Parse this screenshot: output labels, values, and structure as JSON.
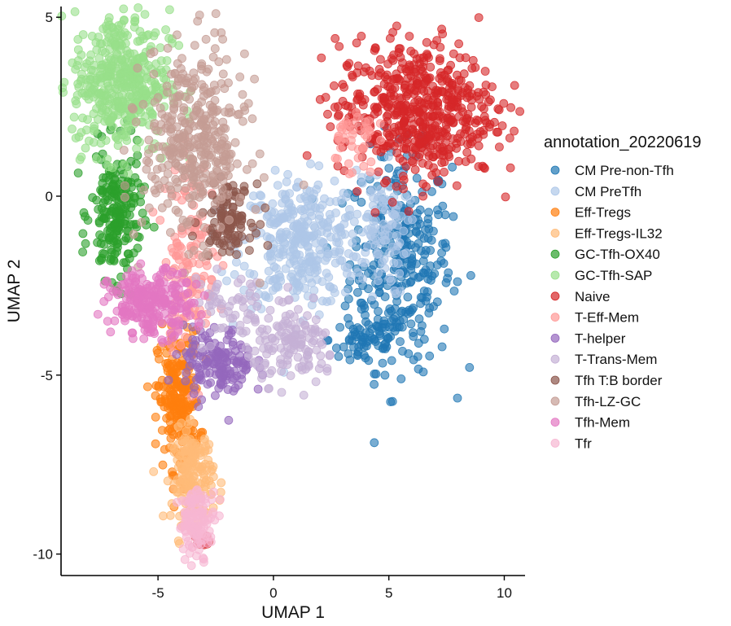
{
  "chart_data": {
    "type": "scatter",
    "title": "",
    "xlabel": "UMAP 1",
    "ylabel": "UMAP 2",
    "xlim": [
      -9.2,
      10.9
    ],
    "ylim": [
      -10.6,
      5.3
    ],
    "xticks": [
      -5,
      0,
      5,
      10
    ],
    "yticks": [
      -10,
      -5,
      0,
      5
    ],
    "xtick_labels": [
      "-5",
      "0",
      "5",
      "10"
    ],
    "ytick_labels": [
      "-10",
      "-5",
      "0",
      "5"
    ],
    "grid": false,
    "legend_position": "right",
    "legend_title": "annotation_20220619",
    "series": [
      {
        "name": "CM Pre-non-Tfh",
        "color": "#1f77b4",
        "clusters": [
          {
            "cx": 5.5,
            "cy": -1.8,
            "sx": 1.1,
            "sy": 1.5,
            "n": 330
          },
          {
            "cx": 4.0,
            "cy": -4.0,
            "sx": 0.8,
            "sy": 0.4,
            "n": 60
          }
        ]
      },
      {
        "name": "CM PreTfh",
        "color": "#aec7e8",
        "clusters": [
          {
            "cx": 1.2,
            "cy": -1.3,
            "sx": 1.3,
            "sy": 0.9,
            "n": 340
          },
          {
            "cx": 4.6,
            "cy": -1.0,
            "sx": 0.6,
            "sy": 0.9,
            "n": 90
          }
        ]
      },
      {
        "name": "Eff-Tregs",
        "color": "#ff7f0e",
        "clusters": [
          {
            "cx": -4.1,
            "cy": -5.7,
            "sx": 0.45,
            "sy": 0.95,
            "n": 230
          }
        ]
      },
      {
        "name": "Eff-Tregs-IL32",
        "color": "#ffbb78",
        "clusters": [
          {
            "cx": -3.5,
            "cy": -7.8,
            "sx": 0.45,
            "sy": 0.65,
            "n": 170
          }
        ]
      },
      {
        "name": "GC-Tfh-OX40",
        "color": "#2ca02c",
        "clusters": [
          {
            "cx": -6.8,
            "cy": -0.5,
            "sx": 0.55,
            "sy": 0.9,
            "n": 210
          }
        ]
      },
      {
        "name": "GC-Tfh-SAP",
        "color": "#98df8a",
        "clusters": [
          {
            "cx": -6.6,
            "cy": 3.2,
            "sx": 1.05,
            "sy": 1.0,
            "n": 440
          }
        ]
      },
      {
        "name": "Naive",
        "color": "#d62728",
        "clusters": [
          {
            "cx": 6.2,
            "cy": 2.4,
            "sx": 1.7,
            "sy": 0.95,
            "n": 560
          },
          {
            "cx": -3.1,
            "cy": -9.7,
            "sx": 0.2,
            "sy": 0.12,
            "n": 14
          }
        ]
      },
      {
        "name": "T-Eff-Mem",
        "color": "#ff9896",
        "clusters": [
          {
            "cx": -3.6,
            "cy": -1.6,
            "sx": 0.55,
            "sy": 1.3,
            "n": 130
          },
          {
            "cx": 3.4,
            "cy": 1.6,
            "sx": 0.5,
            "sy": 0.5,
            "n": 40
          }
        ]
      },
      {
        "name": "T-helper",
        "color": "#9467bd",
        "clusters": [
          {
            "cx": -2.4,
            "cy": -4.7,
            "sx": 0.75,
            "sy": 0.5,
            "n": 150
          }
        ]
      },
      {
        "name": "T-Trans-Mem",
        "color": "#c5b0d5",
        "clusters": [
          {
            "cx": 1.0,
            "cy": -4.2,
            "sx": 0.9,
            "sy": 0.5,
            "n": 130
          },
          {
            "cx": -1.8,
            "cy": -3.2,
            "sx": 0.9,
            "sy": 0.7,
            "n": 60
          }
        ]
      },
      {
        "name": "Tfh T:B border",
        "color": "#8c564b",
        "clusters": [
          {
            "cx": -2.0,
            "cy": -0.6,
            "sx": 0.55,
            "sy": 0.45,
            "n": 110
          }
        ]
      },
      {
        "name": "Tfh-LZ-GC",
        "color": "#c49c94",
        "clusters": [
          {
            "cx": -3.4,
            "cy": 1.5,
            "sx": 1.1,
            "sy": 1.3,
            "n": 380
          }
        ]
      },
      {
        "name": "Tfh-Mem",
        "color": "#e377c2",
        "clusters": [
          {
            "cx": -5.3,
            "cy": -3.0,
            "sx": 0.9,
            "sy": 0.45,
            "n": 240
          }
        ]
      },
      {
        "name": "Tfr",
        "color": "#f7b6d2",
        "clusters": [
          {
            "cx": -3.3,
            "cy": -9.1,
            "sx": 0.4,
            "sy": 0.45,
            "n": 120
          }
        ]
      }
    ]
  }
}
